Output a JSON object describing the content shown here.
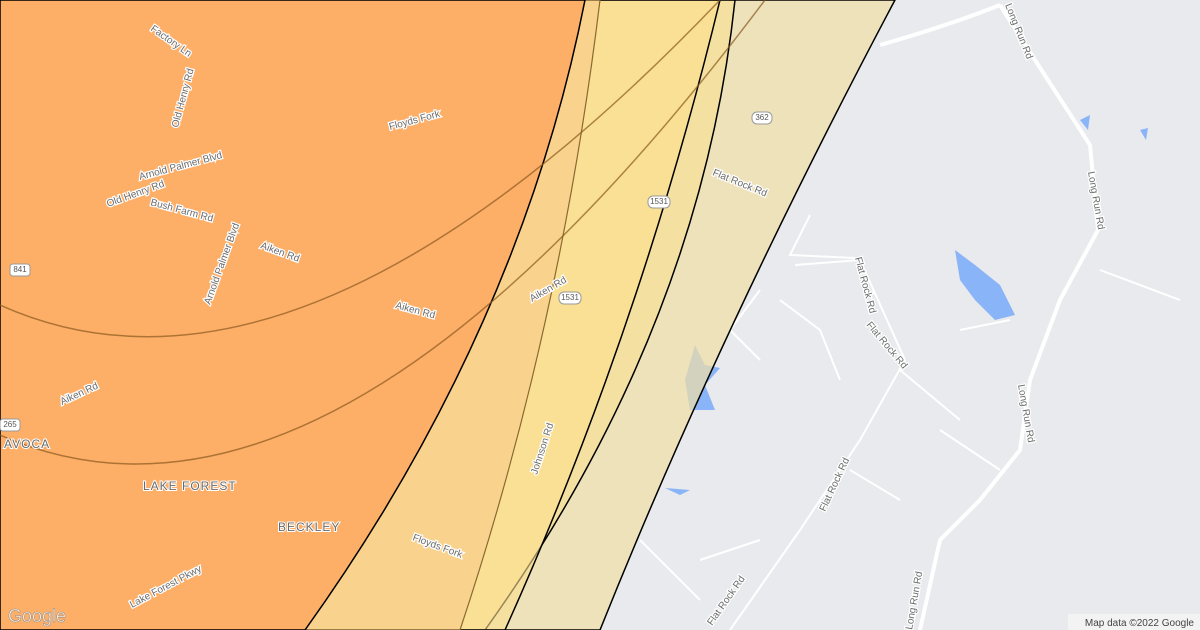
{
  "map": {
    "road_labels": [
      "Factory Ln",
      "Old Henry Rd",
      "Floyds Fork",
      "Arnold Palmer Blvd",
      "Old Henry Rd",
      "Bush Farm Rd",
      "Aiken Rd",
      "Arnold Palmer Blvd",
      "Aiken Rd",
      "Aiken Rd",
      "Aiken Rd",
      "Flat Rock Rd",
      "Johnson Rd",
      "Floyds Fork",
      "Lake Forest Pkwy",
      "Flat Rock Rd",
      "Flat Rock Rd",
      "Flat Rock Rd",
      "Flat Rock Rd",
      "Long Run Rd",
      "Long Run Rd",
      "Long Run Rd",
      "Long Run Rd"
    ],
    "places": [
      "AVOCA",
      "LAKE FOREST",
      "BECKLEY"
    ],
    "shields": [
      "362",
      "1531",
      "1531",
      "841",
      "265"
    ],
    "logo": "Google",
    "attribution": "Map data ©2022 Google"
  }
}
